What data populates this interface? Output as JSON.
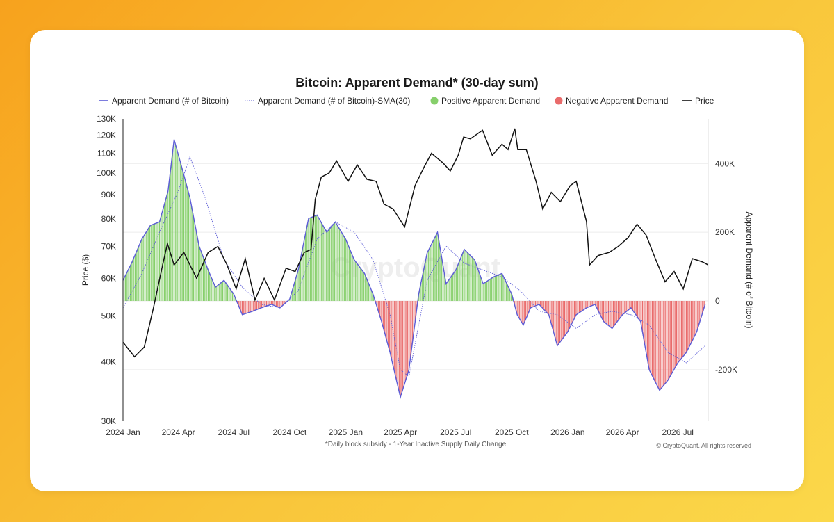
{
  "card": {
    "background": "#ffffff"
  },
  "chart_data": {
    "type": "bar",
    "title": "Bitcoin: Apparent Demand* (30-day sum)",
    "footnote": "*Daily block subsidy - 1-Year Inactive Supply Daily Change",
    "copyright": "© CryptoQuant. All rights reserved",
    "watermark": "CryptoQuant",
    "legend": {
      "placement": "top",
      "items": [
        {
          "label": "Apparent Demand (# of Bitcoin)",
          "color": "#5b5bd6",
          "style": "line"
        },
        {
          "label": "Apparent Demand (# of Bitcoin)-SMA(30)",
          "color": "#5b5bd6",
          "style": "dotted-line"
        },
        {
          "label": "Positive Apparent Demand",
          "color": "#86cf6b",
          "style": "dot"
        },
        {
          "label": "Negative Apparent Demand",
          "color": "#e96b6b",
          "style": "dot"
        },
        {
          "label": "Price",
          "color": "#111111",
          "style": "line"
        }
      ]
    },
    "x_axis": {
      "ticks": [
        "2024 Jan",
        "2024 Apr",
        "2024 Jul",
        "2024 Oct",
        "2025 Jan",
        "2025 Apr",
        "2025 Jul",
        "2025 Oct",
        "2026 Jan",
        "2026 Apr",
        "2026 Jul"
      ],
      "range": [
        "2024-01-01",
        "2026-08-20"
      ]
    },
    "y_left": {
      "label": "Price ($)",
      "scale": "log",
      "range": [
        30000,
        130000
      ],
      "ticks": [
        "30K",
        "40K",
        "50K",
        "60K",
        "70K",
        "80K",
        "90K",
        "100K",
        "110K",
        "120K",
        "130K"
      ]
    },
    "y_right": {
      "label": "Apparent Demand (# of Bitcoin)",
      "range": [
        -350000,
        530000
      ],
      "ticks": [
        "400K",
        "200K",
        "0",
        "-200K"
      ]
    },
    "colors": {
      "positive": "#86cf6b",
      "negative": "#e96b6b",
      "demand_line": "#5b5bd6",
      "price": "#111111"
    },
    "demand_series": {
      "name": "Apparent Demand (# of Bitcoin)",
      "x": [
        "2024-01-01",
        "2024-01-15",
        "2024-02-01",
        "2024-02-15",
        "2024-03-01",
        "2024-03-15",
        "2024-03-25",
        "2024-04-05",
        "2024-04-20",
        "2024-05-05",
        "2024-05-20",
        "2024-06-01",
        "2024-06-15",
        "2024-07-01",
        "2024-07-15",
        "2024-08-01",
        "2024-08-15",
        "2024-09-01",
        "2024-09-15",
        "2024-10-01",
        "2024-10-15",
        "2024-11-01",
        "2024-11-15",
        "2024-12-01",
        "2024-12-15",
        "2025-01-01",
        "2025-01-15",
        "2025-02-01",
        "2025-02-15",
        "2025-03-01",
        "2025-03-15",
        "2025-04-01",
        "2025-04-15",
        "2025-05-01",
        "2025-05-15",
        "2025-06-01",
        "2025-06-15",
        "2025-07-01",
        "2025-07-15",
        "2025-08-01",
        "2025-08-15",
        "2025-09-01",
        "2025-09-15",
        "2025-10-01",
        "2025-10-10",
        "2025-10-20",
        "2025-11-01",
        "2025-11-15",
        "2025-12-01",
        "2025-12-15",
        "2026-01-01",
        "2026-01-15",
        "2026-02-01",
        "2026-02-15",
        "2026-03-01",
        "2026-03-15",
        "2026-04-01",
        "2026-04-15",
        "2026-05-01",
        "2026-05-15",
        "2026-06-01",
        "2026-06-15",
        "2026-07-01",
        "2026-07-15",
        "2026-08-01",
        "2026-08-15"
      ],
      "values": [
        60000,
        110000,
        180000,
        220000,
        230000,
        320000,
        470000,
        400000,
        300000,
        160000,
        90000,
        40000,
        60000,
        20000,
        -40000,
        -30000,
        -20000,
        -10000,
        -20000,
        5000,
        90000,
        240000,
        250000,
        200000,
        230000,
        180000,
        120000,
        80000,
        20000,
        -60000,
        -150000,
        -280000,
        -200000,
        20000,
        140000,
        200000,
        50000,
        90000,
        150000,
        120000,
        50000,
        70000,
        80000,
        20000,
        -40000,
        -70000,
        -20000,
        -10000,
        -40000,
        -130000,
        -90000,
        -40000,
        -20000,
        -10000,
        -60000,
        -80000,
        -40000,
        -20000,
        -60000,
        -200000,
        -260000,
        -230000,
        -180000,
        -150000,
        -90000,
        -10000
      ]
    },
    "sma_series": {
      "name": "Apparent Demand (# of Bitcoin)-SMA(30)",
      "x": [
        "2024-01-01",
        "2024-02-01",
        "2024-03-01",
        "2024-04-01",
        "2024-04-20",
        "2024-05-15",
        "2024-06-15",
        "2024-07-15",
        "2024-08-15",
        "2024-09-15",
        "2024-10-15",
        "2024-11-15",
        "2024-12-15",
        "2025-01-15",
        "2025-02-15",
        "2025-03-15",
        "2025-04-01",
        "2025-04-15",
        "2025-05-15",
        "2025-06-15",
        "2025-07-15",
        "2025-08-15",
        "2025-09-15",
        "2025-10-15",
        "2025-11-15",
        "2025-12-15",
        "2026-01-15",
        "2026-02-15",
        "2026-03-15",
        "2026-04-15",
        "2026-05-15",
        "2026-06-15",
        "2026-07-15",
        "2026-08-15"
      ],
      "values": [
        -20000,
        80000,
        200000,
        320000,
        420000,
        300000,
        120000,
        40000,
        -10000,
        -20000,
        30000,
        180000,
        230000,
        200000,
        120000,
        -40000,
        -200000,
        -220000,
        60000,
        160000,
        110000,
        90000,
        70000,
        30000,
        -30000,
        -40000,
        -80000,
        -40000,
        -30000,
        -40000,
        -70000,
        -150000,
        -180000,
        -130000
      ]
    },
    "price_series": {
      "name": "Price",
      "x": [
        "2024-01-01",
        "2024-01-20",
        "2024-02-05",
        "2024-02-20",
        "2024-03-05",
        "2024-03-14",
        "2024-03-25",
        "2024-04-10",
        "2024-04-20",
        "2024-05-01",
        "2024-05-20",
        "2024-06-05",
        "2024-06-20",
        "2024-07-05",
        "2024-07-20",
        "2024-08-05",
        "2024-08-20",
        "2024-09-06",
        "2024-09-25",
        "2024-10-10",
        "2024-10-25",
        "2024-11-05",
        "2024-11-12",
        "2024-11-22",
        "2024-12-05",
        "2024-12-17",
        "2025-01-05",
        "2025-01-20",
        "2025-02-05",
        "2025-02-20",
        "2025-03-05",
        "2025-03-20",
        "2025-04-08",
        "2025-04-25",
        "2025-05-10",
        "2025-05-22",
        "2025-06-10",
        "2025-06-22",
        "2025-07-05",
        "2025-07-14",
        "2025-07-25",
        "2025-08-14",
        "2025-08-30",
        "2025-09-15",
        "2025-09-25",
        "2025-10-06",
        "2025-10-11",
        "2025-10-25",
        "2025-11-10",
        "2025-11-21",
        "2025-12-05",
        "2025-12-20",
        "2026-01-05",
        "2026-01-15",
        "2026-02-01",
        "2026-02-06",
        "2026-02-20",
        "2026-03-10",
        "2026-03-25",
        "2026-04-10",
        "2026-04-25",
        "2026-05-10",
        "2026-05-25",
        "2026-06-10",
        "2026-06-25",
        "2026-07-10",
        "2026-07-25",
        "2026-08-10",
        "2026-08-20"
      ],
      "values": [
        44000,
        41000,
        43000,
        52000,
        63000,
        71000,
        64000,
        68000,
        64000,
        60000,
        68000,
        70000,
        64000,
        57000,
        66000,
        54000,
        60000,
        54000,
        63000,
        62000,
        68000,
        69000,
        88000,
        98000,
        100000,
        106000,
        96000,
        104000,
        97000,
        96000,
        86000,
        84000,
        77000,
        94000,
        103000,
        110000,
        105000,
        101000,
        109000,
        119000,
        118000,
        123000,
        109000,
        115000,
        112000,
        124000,
        112000,
        112000,
        96000,
        84000,
        91000,
        87000,
        94000,
        96000,
        79000,
        64000,
        67000,
        68000,
        70000,
        73000,
        78000,
        74000,
        66000,
        59000,
        62000,
        57000,
        66000,
        65000,
        64000
      ]
    }
  }
}
